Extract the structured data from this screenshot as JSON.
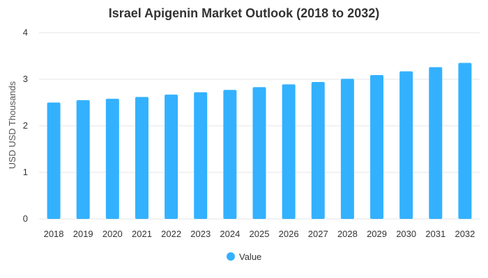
{
  "colors": {
    "bar": "#33B1FF",
    "grid": "#E6E6E6",
    "text": "#333333"
  },
  "chart_data": {
    "type": "bar",
    "title": "Israel Apigenin Market Outlook (2018 to 2032)",
    "xlabel": "",
    "ylabel": "USD USD Thousands",
    "ylim": [
      0,
      4
    ],
    "yticks": [
      0,
      1,
      2,
      3,
      4
    ],
    "grid": true,
    "legend_position": "bottom",
    "categories": [
      "2018",
      "2019",
      "2020",
      "2021",
      "2022",
      "2023",
      "2024",
      "2025",
      "2026",
      "2027",
      "2028",
      "2029",
      "2030",
      "2031",
      "2032"
    ],
    "series": [
      {
        "name": "Value",
        "values": [
          2.5,
          2.55,
          2.58,
          2.62,
          2.67,
          2.72,
          2.77,
          2.83,
          2.89,
          2.94,
          3.01,
          3.09,
          3.17,
          3.26,
          3.35
        ]
      }
    ]
  }
}
